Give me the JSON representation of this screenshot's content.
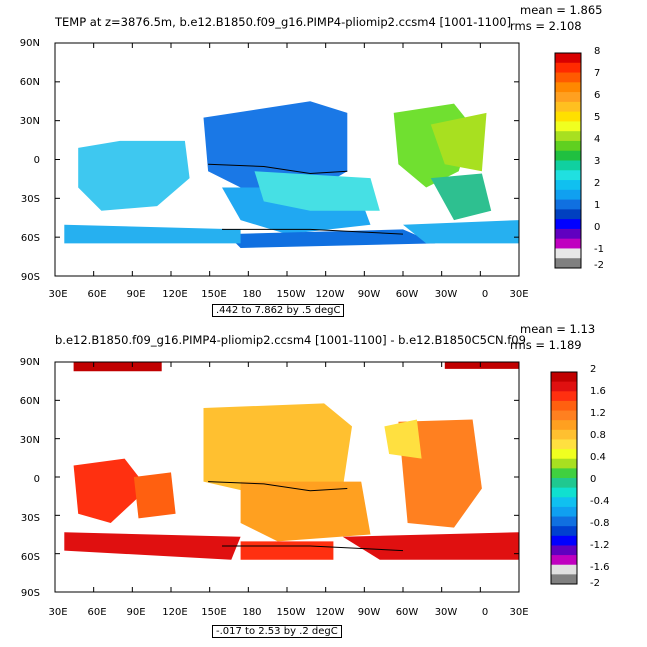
{
  "panels": [
    {
      "title": "TEMP at z=3876.5m, b.e12.B1850.f09_g16.PIMP4-pliomip2.ccsm4 [1001-1100]",
      "mean": "mean = 1.865",
      "rms": "rms = 2.108",
      "range": ".442 to 7.862 by .5 degC",
      "colorbar_labels": [
        "8",
        "7",
        "6",
        "5",
        "4",
        "3",
        "2",
        "1",
        "0",
        "-1",
        "-2"
      ],
      "colorbar_colors": [
        "#d80000",
        "#ff2a00",
        "#ff5a00",
        "#ff8800",
        "#ffa020",
        "#ffc020",
        "#ffe000",
        "#f0ff20",
        "#a8e020",
        "#60d020",
        "#20c040",
        "#10d0a0",
        "#20e0e0",
        "#10c0f0",
        "#10a0f0",
        "#1070e0",
        "#0040c0",
        "#0000ff",
        "#6000c0",
        "#c000c0",
        "#e8e8e8",
        "#808080"
      ]
    },
    {
      "title": "b.e12.B1850.f09_g16.PIMP4-pliomip2.ccsm4 [1001-1100] - b.e12.B1850C5CN.f09",
      "mean": "mean = 1.13",
      "rms": "rms = 1.189",
      "range": "-.017 to 2.53 by .2 degC",
      "colorbar_labels": [
        "2",
        "1.6",
        "1.2",
        "0.8",
        "0.4",
        "0",
        "-0.4",
        "-0.8",
        "-1.2",
        "-1.6",
        "-2"
      ],
      "colorbar_colors": [
        "#c00000",
        "#e01010",
        "#ff3010",
        "#ff6010",
        "#ff8020",
        "#ffa020",
        "#ffc030",
        "#ffe040",
        "#f0ff20",
        "#a8e020",
        "#40d040",
        "#20c890",
        "#10e0d0",
        "#10c0f0",
        "#10a0f0",
        "#1070e0",
        "#0040d0",
        "#0000ff",
        "#6000c0",
        "#c000c0",
        "#e0e0e0",
        "#808080"
      ]
    }
  ],
  "y_labels": [
    "90N",
    "60N",
    "30N",
    "0",
    "30S",
    "60S",
    "90S"
  ],
  "x_labels": [
    "30E",
    "60E",
    "90E",
    "120E",
    "150E",
    "180",
    "150W",
    "120W",
    "90W",
    "60W",
    "30W",
    "0",
    "30E"
  ]
}
